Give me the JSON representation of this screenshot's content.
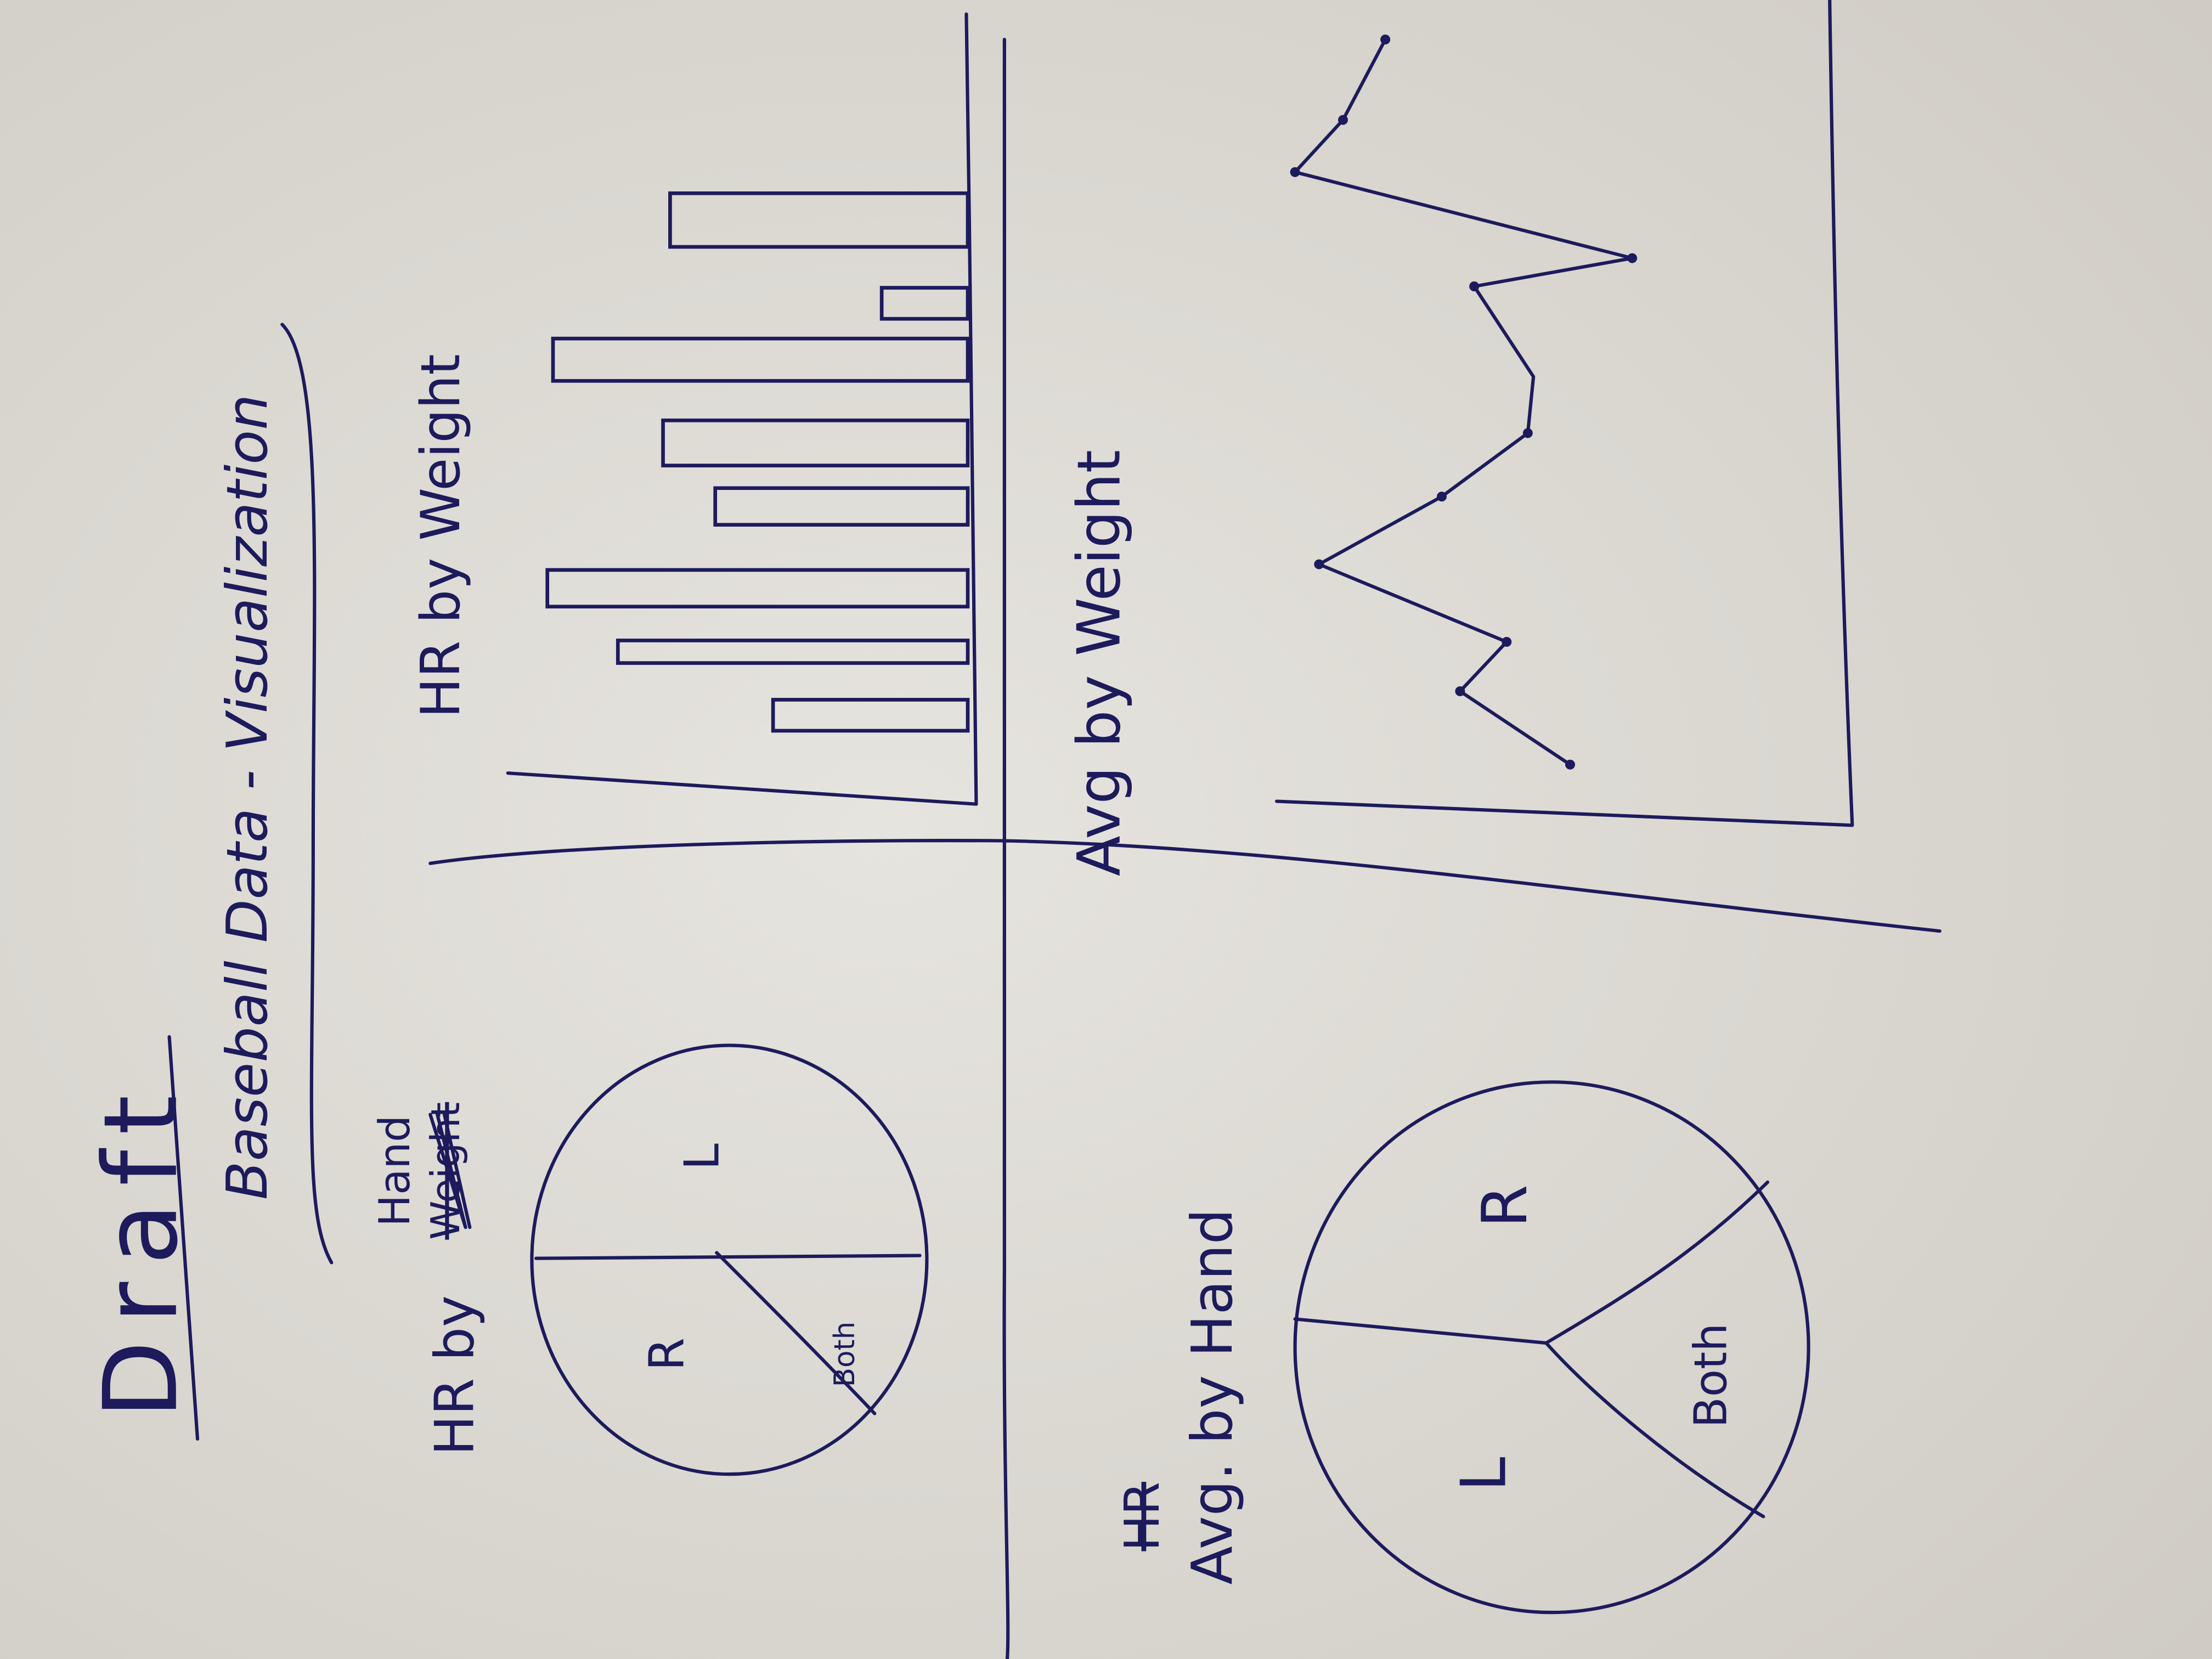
{
  "header": {
    "title": "Draft",
    "subtitle": "Baseball Data - Visualization"
  },
  "panels": [
    {
      "title": "HR by",
      "title_end": "Hand",
      "struck": "Weight",
      "labels": [
        "R",
        "L",
        "Both"
      ]
    },
    {
      "title": "HR by Weight"
    },
    {
      "title": "Avg by Weight"
    },
    {
      "title": "Avg. by Hand",
      "struck": "HR",
      "labels": [
        "R",
        "Both",
        "L"
      ]
    }
  ]
}
